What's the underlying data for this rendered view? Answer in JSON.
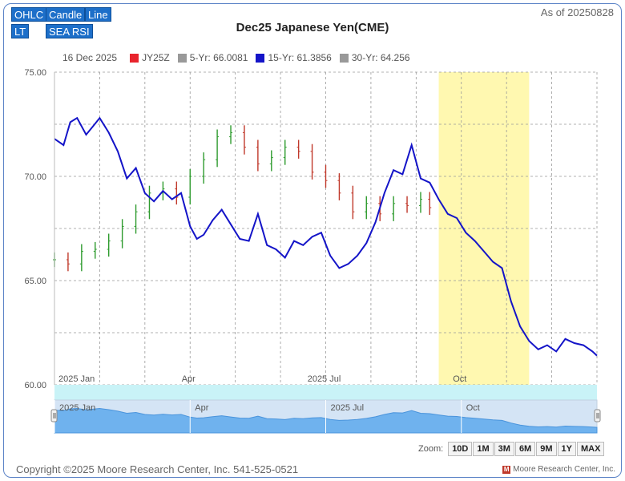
{
  "toolbar": {
    "ohlc": "OHLC",
    "candle": "Candle",
    "line": "Line",
    "lt": "LT",
    "sea_rsi": "SEA RSI"
  },
  "as_of": "As of 20250828",
  "legend": {
    "date": "16 Dec 2025",
    "items": [
      {
        "label": "JY25Z",
        "color": "#e8242d"
      },
      {
        "label": "5-Yr: 66.0081",
        "color": "#999999"
      },
      {
        "label": "15-Yr: 61.3856",
        "color": "#1414c8"
      },
      {
        "label": "30-Yr: 64.256",
        "color": "#999999"
      }
    ]
  },
  "zoom": {
    "label": "Zoom:",
    "buttons": [
      "10D",
      "1M",
      "3M",
      "6M",
      "9M",
      "1Y",
      "MAX"
    ]
  },
  "copyright": "Copyright ©2025 Moore Research Center, Inc. 541-525-0521",
  "brand": "Moore Research Center, Inc.",
  "chart_data": {
    "type": "line",
    "title": "Dec25 Japanese Yen(CME)",
    "ylim": [
      60,
      75
    ],
    "yticks": [
      "75.00",
      "70.00",
      "65.00",
      "60.00"
    ],
    "xlim": [
      0,
      12
    ],
    "x_axis_labels": [
      {
        "label": "2025 Jan",
        "x": 0
      },
      {
        "label": "Apr",
        "x": 3
      },
      {
        "label": "2025 Jul",
        "x": 6
      },
      {
        "label": "Oct",
        "x": 9
      }
    ],
    "highlight_range": [
      8.5,
      10.5
    ],
    "highlight_color": "#fff8b0",
    "grid": true,
    "series": [
      {
        "name": "15-Yr: 61.3856",
        "color": "#1414c8",
        "x": [
          0,
          0.2,
          0.35,
          0.5,
          0.7,
          0.85,
          1.0,
          1.2,
          1.4,
          1.6,
          1.8,
          2.0,
          2.2,
          2.4,
          2.6,
          2.8,
          3.0,
          3.15,
          3.3,
          3.5,
          3.7,
          3.9,
          4.1,
          4.3,
          4.5,
          4.7,
          4.9,
          5.1,
          5.3,
          5.5,
          5.7,
          5.9,
          6.1,
          6.3,
          6.5,
          6.7,
          6.9,
          7.1,
          7.3,
          7.5,
          7.7,
          7.9,
          8.1,
          8.3,
          8.5,
          8.7,
          8.9,
          9.1,
          9.3,
          9.5,
          9.7,
          9.9,
          10.1,
          10.3,
          10.5,
          10.7,
          10.9,
          11.1,
          11.3,
          11.5,
          11.7,
          11.9,
          12.0
        ],
        "values": [
          71.8,
          71.5,
          72.6,
          72.8,
          72.0,
          72.4,
          72.8,
          72.1,
          71.2,
          69.9,
          70.4,
          69.2,
          68.8,
          69.3,
          68.9,
          69.2,
          67.6,
          67.0,
          67.2,
          67.9,
          68.4,
          67.7,
          67.0,
          66.9,
          68.2,
          66.7,
          66.5,
          66.1,
          66.9,
          66.7,
          67.1,
          67.3,
          66.2,
          65.6,
          65.8,
          66.2,
          66.8,
          67.8,
          69.2,
          70.3,
          70.1,
          71.5,
          69.9,
          69.7,
          68.9,
          68.2,
          68.0,
          67.3,
          66.9,
          66.4,
          65.9,
          65.6,
          64.0,
          62.8,
          62.1,
          61.7,
          61.9,
          61.6,
          62.2,
          62.0,
          61.9,
          61.6,
          61.4
        ]
      },
      {
        "name": "JY25Z",
        "color": "#e8242d",
        "type": "ohlc",
        "x": [
          0,
          0.3,
          0.6,
          0.9,
          1.2,
          1.5,
          1.8,
          2.1,
          2.4,
          2.7,
          3.0,
          3.3,
          3.6,
          3.9,
          4.2,
          4.5,
          4.8,
          5.1,
          5.4,
          5.7,
          6.0,
          6.3,
          6.6,
          6.9,
          7.2,
          7.5,
          7.8,
          8.1,
          8.3
        ],
        "values": [
          66.0,
          65.8,
          66.4,
          66.5,
          66.9,
          67.6,
          68.3,
          69.2,
          69.4,
          69.0,
          70.0,
          70.8,
          71.9,
          72.1,
          71.4,
          70.6,
          70.9,
          71.4,
          71.2,
          70.2,
          69.8,
          69.2,
          68.3,
          68.7,
          68.2,
          68.7,
          68.6,
          68.9,
          68.5
        ]
      }
    ]
  }
}
